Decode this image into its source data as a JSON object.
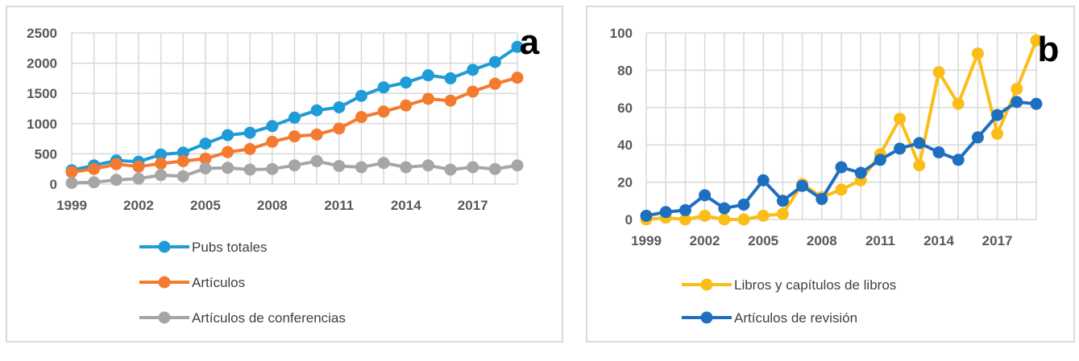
{
  "chart_data": [
    {
      "id": "a",
      "type": "line",
      "panel_label": "a",
      "x": [
        1999,
        2000,
        2001,
        2002,
        2003,
        2004,
        2005,
        2006,
        2007,
        2008,
        2009,
        2010,
        2011,
        2012,
        2013,
        2014,
        2015,
        2016,
        2017,
        2018,
        2019
      ],
      "x_tick_labels": [
        "1999",
        "2002",
        "2005",
        "2008",
        "2011",
        "2014",
        "2017"
      ],
      "y_tick_labels": [
        "0",
        "500",
        "1000",
        "1500",
        "2000",
        "2500"
      ],
      "ylim": [
        0,
        2500
      ],
      "grid": true,
      "legend_position": "bottom",
      "series": [
        {
          "name": "Pubs totales",
          "color": "#1f9bd7",
          "values": [
            230,
            310,
            390,
            370,
            490,
            520,
            670,
            810,
            850,
            960,
            1100,
            1220,
            1270,
            1460,
            1600,
            1680,
            1800,
            1750,
            1890,
            2020,
            2270
          ]
        },
        {
          "name": "Artículos",
          "color": "#f47a30",
          "values": [
            200,
            250,
            330,
            290,
            340,
            380,
            420,
            530,
            580,
            700,
            790,
            820,
            920,
            1110,
            1200,
            1300,
            1410,
            1380,
            1530,
            1660,
            1760
          ]
        },
        {
          "name": "Artículos de conferencias",
          "color": "#a6a6a6",
          "values": [
            20,
            30,
            70,
            90,
            150,
            130,
            260,
            270,
            240,
            250,
            310,
            380,
            300,
            280,
            350,
            280,
            310,
            240,
            280,
            250,
            310
          ]
        }
      ]
    },
    {
      "id": "b",
      "type": "line",
      "panel_label": "b",
      "x": [
        1999,
        2000,
        2001,
        2002,
        2003,
        2004,
        2005,
        2006,
        2007,
        2008,
        2009,
        2010,
        2011,
        2012,
        2013,
        2014,
        2015,
        2016,
        2017,
        2018,
        2019
      ],
      "x_tick_labels": [
        "1999",
        "2002",
        "2005",
        "2008",
        "2011",
        "2014",
        "2017"
      ],
      "y_tick_labels": [
        "0",
        "20",
        "40",
        "60",
        "80",
        "100"
      ],
      "ylim": [
        0,
        100
      ],
      "grid": true,
      "legend_position": "bottom",
      "series": [
        {
          "name": "Libros y capítulos de libros",
          "color": "#fbbd18",
          "values": [
            0,
            1,
            0,
            2,
            0,
            0,
            2,
            3,
            19,
            12,
            16,
            21,
            35,
            54,
            29,
            79,
            62,
            89,
            46,
            70,
            96
          ]
        },
        {
          "name": "Artículos de revisión",
          "color": "#1f6fc0",
          "values": [
            2,
            4,
            5,
            13,
            6,
            8,
            21,
            10,
            18,
            11,
            28,
            25,
            32,
            38,
            41,
            36,
            32,
            44,
            56,
            63,
            62
          ]
        }
      ]
    }
  ]
}
